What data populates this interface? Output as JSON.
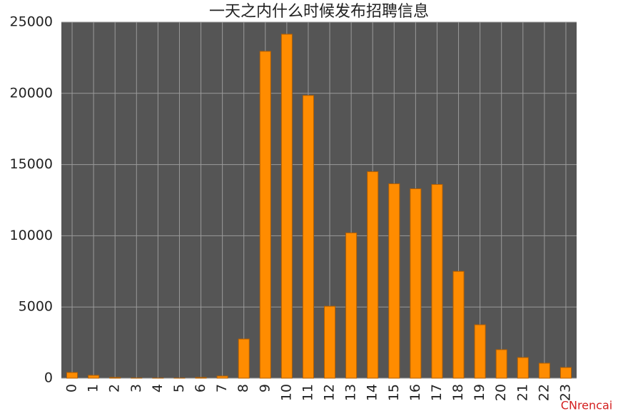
{
  "chart_data": {
    "type": "bar",
    "title": "一天之内什么时候发布招聘信息",
    "categories": [
      "0",
      "1",
      "2",
      "3",
      "4",
      "5",
      "6",
      "7",
      "8",
      "9",
      "10",
      "11",
      "12",
      "13",
      "14",
      "15",
      "16",
      "17",
      "18",
      "19",
      "20",
      "21",
      "22",
      "23"
    ],
    "values": [
      400,
      200,
      50,
      10,
      5,
      5,
      50,
      150,
      2750,
      22950,
      24150,
      19850,
      5050,
      10200,
      14500,
      13650,
      13300,
      13600,
      7500,
      3750,
      2000,
      1450,
      1050,
      750
    ],
    "color": "#ff8c00",
    "ylim": [
      0,
      25000
    ],
    "yticks": [
      0,
      5000,
      10000,
      15000,
      20000,
      25000
    ],
    "grid": true,
    "watermark": "CNrencai"
  }
}
